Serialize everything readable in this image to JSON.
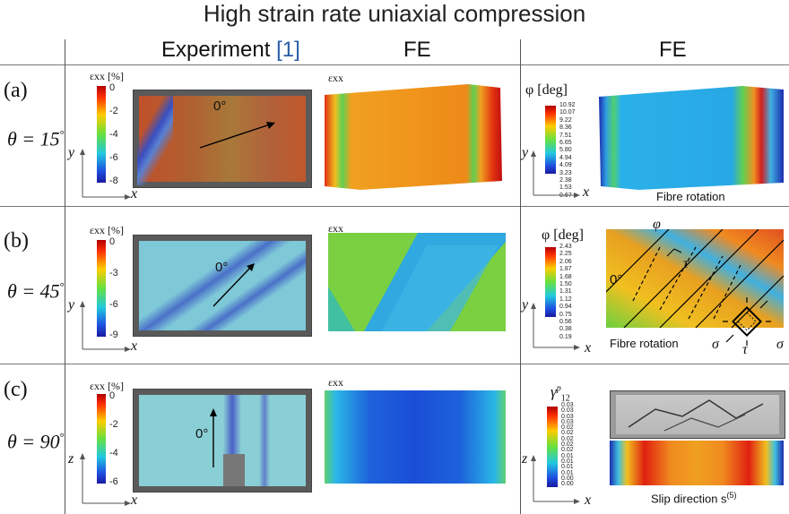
{
  "title": "High strain rate uniaxial compression",
  "columns": {
    "experiment": "Experiment",
    "experiment_ref": "[1]",
    "fe_strain": "FE",
    "fe_other": "FE"
  },
  "rows": [
    {
      "label": "(a)",
      "theta": "θ = 15",
      "theta_sup": "°",
      "exp_cbar_title": "εxx [%]",
      "exp_ticks": [
        "0",
        "-2",
        "-4",
        "-6",
        "-8"
      ],
      "fe_title": "εxx",
      "angle_label": "0°",
      "right_cbar_title": "φ [deg]",
      "right_ticks": [
        "10.92",
        "10.07",
        "9.22",
        "8.36",
        "7.51",
        "6.65",
        "5.80",
        "4.94",
        "4.09",
        "3.23",
        "2.38",
        "1.53",
        "0.67"
      ],
      "caption": "Fibre rotation",
      "axis_v": "y",
      "axis_h": "x"
    },
    {
      "label": "(b)",
      "theta": "θ = 45",
      "theta_sup": "°",
      "exp_cbar_title": "εxx [%]",
      "exp_ticks": [
        "0",
        "-3",
        "-6",
        "-9"
      ],
      "fe_title": "εxx",
      "angle_label": "0°",
      "right_cbar_title": "φ [deg]",
      "right_ticks": [
        "2.43",
        "2.25",
        "2.06",
        "1.87",
        "1.68",
        "1.50",
        "1.31",
        "1.12",
        "0.94",
        "0.75",
        "0.56",
        "0.38",
        "0.19"
      ],
      "caption": "Fibre rotation",
      "phi": "φ",
      "tau": "τ",
      "sigma": "σ",
      "zero": "0°",
      "axis_v": "y",
      "axis_h": "x"
    },
    {
      "label": "(c)",
      "theta": "θ = 90",
      "theta_sup": "°",
      "exp_cbar_title": "εxx [%]",
      "exp_ticks": [
        "0",
        "-2",
        "-4",
        "-6"
      ],
      "fe_title": "εxx",
      "angle_label": "0°",
      "right_cbar_title": "γ",
      "right_cbar_sup": "p",
      "right_cbar_sub": "12",
      "right_ticks": [
        "0.03",
        "0.03",
        "0.03",
        "0.03",
        "0.02",
        "0.02",
        "0.02",
        "0.02",
        "0.02",
        "0.01",
        "0.01",
        "0.01",
        "0.01",
        "0.00",
        "0.00"
      ],
      "caption": "Slip direction s",
      "caption_sup": "(5)",
      "axis_v": "z",
      "axis_h": "x"
    }
  ],
  "colors": {
    "jet_top": "#d7301f",
    "jet_mid": "#7ee44c",
    "jet_bottom": "#1a2bb0"
  }
}
